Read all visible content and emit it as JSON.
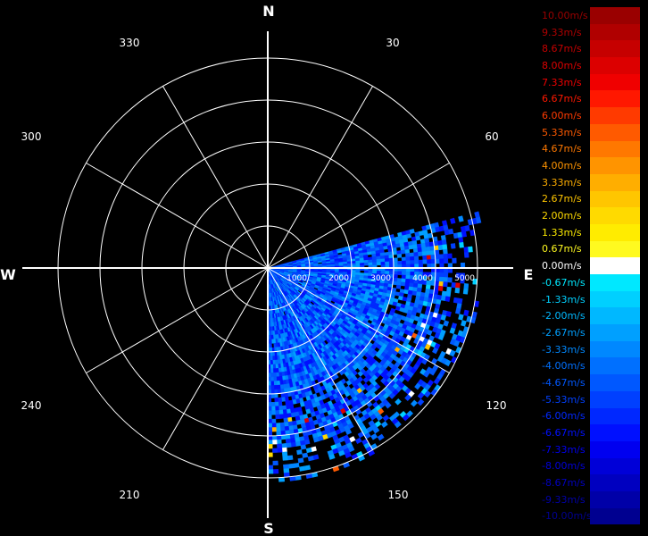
{
  "chart_data": {
    "type": "polar-heatmap",
    "title": "",
    "compass": {
      "north": "N",
      "east": "E",
      "south": "S",
      "west": "W"
    },
    "azimuth_labels": [
      "30",
      "60",
      "120",
      "150",
      "210",
      "240",
      "300",
      "330"
    ],
    "range_labels": [
      "1000",
      "2000",
      "3000",
      "4000",
      "5000"
    ],
    "range_max": 5000,
    "sector": {
      "from_deg": 75,
      "to_deg": 180
    },
    "colorbar": [
      {
        "label": "10.00m/s",
        "color": "#9a0000"
      },
      {
        "label": "9.33m/s",
        "color": "#b00000"
      },
      {
        "label": "8.67m/s",
        "color": "#c60000"
      },
      {
        "label": "8.00m/s",
        "color": "#dc0000"
      },
      {
        "label": "7.33m/s",
        "color": "#f00000"
      },
      {
        "label": "6.67m/s",
        "color": "#ff1800"
      },
      {
        "label": "6.00m/s",
        "color": "#ff3a00"
      },
      {
        "label": "5.33m/s",
        "color": "#ff5a00"
      },
      {
        "label": "4.67m/s",
        "color": "#ff7800"
      },
      {
        "label": "4.00m/s",
        "color": "#ff9400"
      },
      {
        "label": "3.33m/s",
        "color": "#ffae00"
      },
      {
        "label": "2.67m/s",
        "color": "#ffc600"
      },
      {
        "label": "2.00m/s",
        "color": "#ffda00"
      },
      {
        "label": "1.33m/s",
        "color": "#ffec00"
      },
      {
        "label": "0.67m/s",
        "color": "#fffa20"
      },
      {
        "label": "0.00m/s",
        "color": "#ffffff"
      },
      {
        "label": "-0.67m/s",
        "color": "#00e8ff"
      },
      {
        "label": "-1.33m/s",
        "color": "#00d0ff"
      },
      {
        "label": "-2.00m/s",
        "color": "#00b8ff"
      },
      {
        "label": "-2.67m/s",
        "color": "#00a0ff"
      },
      {
        "label": "-3.33m/s",
        "color": "#0088ff"
      },
      {
        "label": "-4.00m/s",
        "color": "#0070ff"
      },
      {
        "label": "-4.67m/s",
        "color": "#0058ff"
      },
      {
        "label": "-5.33m/s",
        "color": "#0040ff"
      },
      {
        "label": "-6.00m/s",
        "color": "#0028ff"
      },
      {
        "label": "-6.67m/s",
        "color": "#0010ff"
      },
      {
        "label": "-7.33m/s",
        "color": "#0000f0"
      },
      {
        "label": "-8.00m/s",
        "color": "#0000d8"
      },
      {
        "label": "-8.67m/s",
        "color": "#0000c0"
      },
      {
        "label": "-9.33m/s",
        "color": "#0000a8"
      },
      {
        "label": "-10.00m/s",
        "color": "#000090"
      }
    ]
  }
}
